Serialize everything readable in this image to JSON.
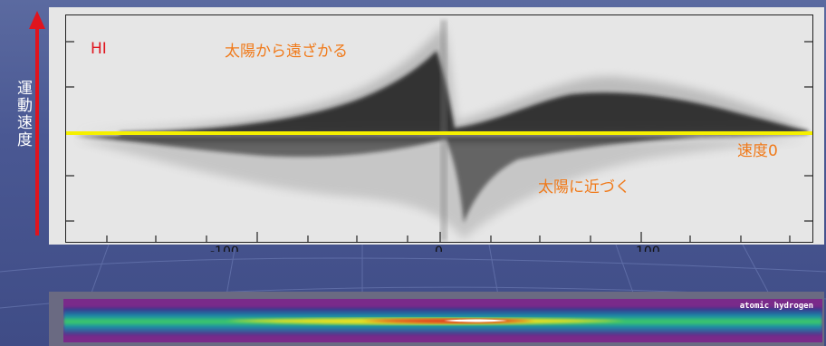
{
  "main_plot": {
    "series_label": "HI",
    "receding_label": "太陽から遠ざかる",
    "approaching_label": "太陽に近づく",
    "zero_velocity_label": "速度0",
    "x_ticks": [
      "-100",
      "0",
      "100"
    ]
  },
  "y_axis": {
    "label": "運動速度"
  },
  "bottom_map": {
    "label": "atomic hydrogen"
  },
  "colors": {
    "accent_orange": "#f07a1a",
    "hi_red": "#e0141e",
    "zero_line_yellow": "#f5f000",
    "arrow_red": "#e0141e",
    "background": "#4a5893"
  }
}
